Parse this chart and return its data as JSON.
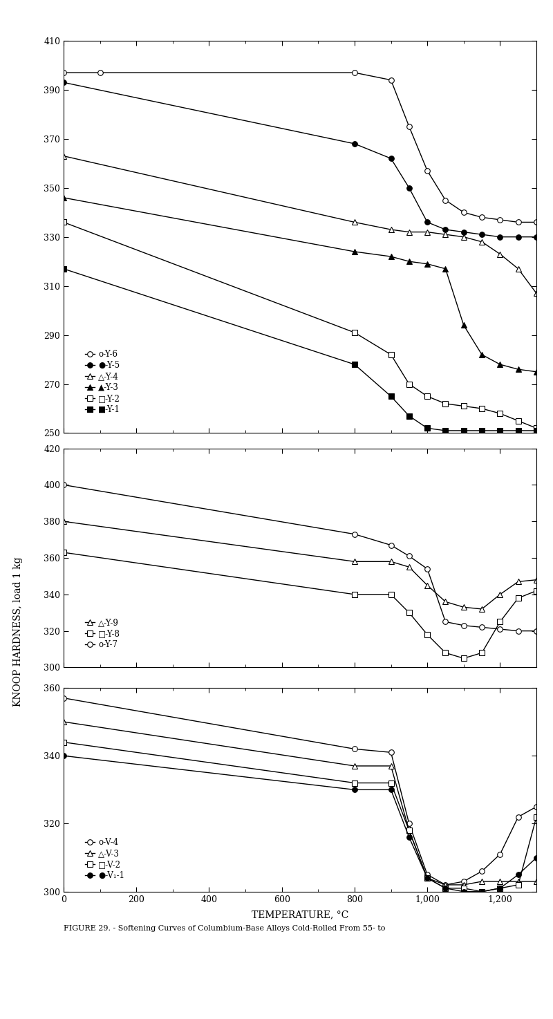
{
  "chart1": {
    "ylim": [
      250,
      410
    ],
    "yticks": [
      250,
      270,
      290,
      310,
      330,
      350,
      370,
      390,
      410
    ],
    "series": [
      {
        "label": "o-Y-6",
        "marker": "o",
        "fillstyle": "none",
        "x": [
          0,
          100,
          800,
          900,
          950,
          1000,
          1050,
          1100,
          1150,
          1200,
          1250,
          1300
        ],
        "y": [
          397,
          397,
          397,
          394,
          375,
          357,
          345,
          340,
          338,
          337,
          336,
          336
        ]
      },
      {
        "label": "●-Y-5",
        "marker": "o",
        "fillstyle": "full",
        "x": [
          0,
          800,
          900,
          950,
          1000,
          1050,
          1100,
          1150,
          1200,
          1250,
          1300
        ],
        "y": [
          393,
          368,
          362,
          350,
          336,
          333,
          332,
          331,
          330,
          330,
          330
        ]
      },
      {
        "label": "△-Y-4",
        "marker": "^",
        "fillstyle": "none",
        "x": [
          0,
          800,
          900,
          950,
          1000,
          1050,
          1100,
          1150,
          1200,
          1250,
          1300
        ],
        "y": [
          363,
          336,
          333,
          332,
          332,
          331,
          330,
          328,
          323,
          317,
          307
        ]
      },
      {
        "label": "▲-Y-3",
        "marker": "^",
        "fillstyle": "full",
        "x": [
          0,
          800,
          900,
          950,
          1000,
          1050,
          1100,
          1150,
          1200,
          1250,
          1300
        ],
        "y": [
          346,
          324,
          322,
          320,
          319,
          317,
          294,
          282,
          278,
          276,
          275
        ]
      },
      {
        "label": "□-Y-2",
        "marker": "s",
        "fillstyle": "none",
        "x": [
          0,
          800,
          900,
          950,
          1000,
          1050,
          1100,
          1150,
          1200,
          1250,
          1300
        ],
        "y": [
          336,
          291,
          282,
          270,
          265,
          262,
          261,
          260,
          258,
          255,
          252
        ]
      },
      {
        "label": "■-Y-1",
        "marker": "s",
        "fillstyle": "full",
        "x": [
          0,
          800,
          900,
          950,
          1000,
          1050,
          1100,
          1150,
          1200,
          1250,
          1300
        ],
        "y": [
          317,
          278,
          265,
          257,
          252,
          251,
          251,
          251,
          251,
          251,
          251
        ]
      }
    ]
  },
  "chart2": {
    "ylim": [
      300,
      420
    ],
    "yticks": [
      300,
      320,
      340,
      360,
      380,
      400,
      420
    ],
    "series": [
      {
        "label": "o-Y-7",
        "marker": "o",
        "fillstyle": "none",
        "x": [
          0,
          800,
          900,
          950,
          1000,
          1050,
          1100,
          1150,
          1200,
          1250,
          1300
        ],
        "y": [
          400,
          373,
          367,
          361,
          354,
          325,
          323,
          322,
          321,
          320,
          320
        ]
      },
      {
        "label": "△-Y-9",
        "marker": "^",
        "fillstyle": "none",
        "x": [
          0,
          800,
          900,
          950,
          1000,
          1050,
          1100,
          1150,
          1200,
          1250,
          1300
        ],
        "y": [
          380,
          358,
          358,
          355,
          345,
          336,
          333,
          332,
          340,
          347,
          348
        ]
      },
      {
        "label": "□-Y-8",
        "marker": "s",
        "fillstyle": "none",
        "x": [
          0,
          800,
          900,
          950,
          1000,
          1050,
          1100,
          1150,
          1200,
          1250,
          1300
        ],
        "y": [
          363,
          340,
          340,
          330,
          318,
          308,
          305,
          308,
          325,
          338,
          342
        ]
      }
    ]
  },
  "chart3": {
    "ylim": [
      300,
      360
    ],
    "yticks": [
      300,
      320,
      340,
      360
    ],
    "series": [
      {
        "label": "o-V-4",
        "marker": "o",
        "fillstyle": "none",
        "x": [
          0,
          800,
          900,
          950,
          1000,
          1050,
          1100,
          1150,
          1200,
          1250,
          1300
        ],
        "y": [
          357,
          342,
          341,
          320,
          305,
          302,
          303,
          306,
          311,
          322,
          325
        ]
      },
      {
        "label": "△-V-3",
        "marker": "^",
        "fillstyle": "none",
        "x": [
          0,
          800,
          900,
          950,
          1000,
          1050,
          1100,
          1150,
          1200,
          1250,
          1300
        ],
        "y": [
          350,
          337,
          337,
          318,
          304,
          302,
          302,
          303,
          303,
          303,
          303
        ]
      },
      {
        "label": "□-V-2",
        "marker": "s",
        "fillstyle": "none",
        "x": [
          0,
          800,
          900,
          950,
          1000,
          1050,
          1100,
          1150,
          1200,
          1250,
          1300
        ],
        "y": [
          344,
          332,
          332,
          318,
          304,
          301,
          301,
          300,
          301,
          302,
          322
        ]
      },
      {
        "label": "●-V₁-1",
        "marker": "o",
        "fillstyle": "full",
        "x": [
          0,
          800,
          900,
          950,
          1000,
          1050,
          1100,
          1150,
          1200,
          1250,
          1300
        ],
        "y": [
          340,
          330,
          330,
          316,
          304,
          301,
          300,
          300,
          301,
          305,
          310
        ]
      }
    ]
  },
  "xlabel": "TEMPERATURE, °C",
  "ylabel": "KNOOP HARDNESS, load 1 kg",
  "xlim": [
    0,
    1300
  ],
  "xtick_vals": [
    0,
    200,
    400,
    600,
    800,
    1000,
    1200
  ],
  "xtick_labels": [
    "0",
    "200",
    "400",
    "600",
    "800",
    "1,000",
    "1,200"
  ],
  "caption": "FIGURE 29. - Softening Curves of Columbium-Base Alloys Cold-Rolled From 55- to",
  "bg_color": "#ffffff",
  "line_color": "#000000",
  "legend1_labels": [
    "o-Y-6",
    "●-Y-5",
    "△-Y-4",
    "▲-Y-3",
    "□-Y-2",
    "■-Y-1"
  ],
  "legend2_labels": [
    "△-Y-9",
    "□-Y-8",
    "o-Y-7"
  ],
  "legend3_labels": [
    "o-V-4",
    "△-V-3",
    "□-V-2",
    "●-V₁-1"
  ]
}
